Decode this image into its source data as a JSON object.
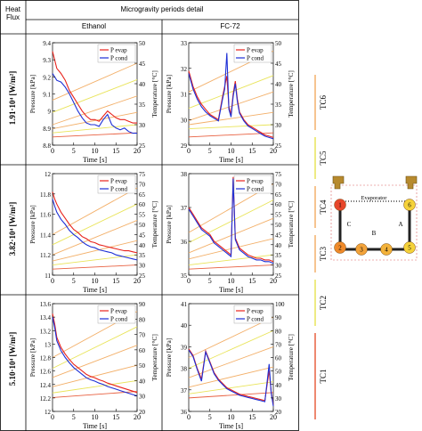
{
  "header": {
    "heat_flux_line1": "Heat",
    "heat_flux_line2": "Flux",
    "group_title": "Microgravity periods detail",
    "col_ethanol": "Ethanol",
    "col_fc72": "FC-72"
  },
  "rows": [
    {
      "label": "1.91·10⁴ [W/m²]"
    },
    {
      "label": "3.82·10⁴ [W/m²]"
    },
    {
      "label": "5.10·10⁴ [W/m²]"
    }
  ],
  "legend": {
    "p_evap": "P evap",
    "p_cond": "P cond"
  },
  "colors": {
    "p_evap": "#e8231c",
    "p_cond": "#1d2fd6",
    "tc_orange": "#f3b06a",
    "tc_yellow": "#e9e45a",
    "tc_red": "#e86040"
  },
  "tc_labels": [
    "TC6",
    "TC5",
    "TC4",
    "TC3",
    "TC2",
    "TC1"
  ],
  "schematic": {
    "evaporator": "Evaporator",
    "letters": [
      "C",
      "B",
      "A"
    ],
    "nodes": [
      "1",
      "2",
      "3",
      "4",
      "5",
      "6"
    ]
  },
  "chart_data": [
    {
      "type": "line",
      "panel": "ethanol-1",
      "xlabel": "Time [s]",
      "ylabel": "Pressure [kPa]",
      "y2label": "Temperature [°C]",
      "xlim": [
        0,
        20
      ],
      "ylim": [
        8.8,
        9.4
      ],
      "y2lim": [
        25,
        50
      ],
      "xticks": [
        0,
        5,
        10,
        15,
        20
      ],
      "yticks": [
        8.8,
        8.9,
        9,
        9.1,
        9.2,
        9.3,
        9.4
      ],
      "y2ticks": [
        25,
        30,
        35,
        40,
        45,
        50
      ],
      "series": [
        {
          "name": "P evap",
          "x": [
            0,
            0.5,
            1,
            2,
            3,
            4,
            5,
            6,
            7,
            8,
            9,
            10,
            11,
            12,
            13,
            14,
            15,
            16,
            17,
            18,
            19,
            20
          ],
          "y": [
            9.35,
            9.3,
            9.25,
            9.22,
            9.18,
            9.12,
            9.08,
            9.04,
            9.0,
            8.97,
            8.95,
            8.95,
            8.94,
            8.97,
            9.0,
            8.98,
            8.96,
            8.95,
            8.95,
            8.94,
            8.93,
            8.93
          ]
        },
        {
          "name": "P cond",
          "x": [
            0,
            0.5,
            1,
            2,
            3,
            4,
            5,
            6,
            7,
            8,
            9,
            10,
            11,
            12,
            13,
            14,
            15,
            16,
            17,
            18,
            19,
            20
          ],
          "y": [
            9.22,
            9.2,
            9.18,
            9.17,
            9.14,
            9.1,
            9.05,
            9.0,
            8.96,
            8.93,
            8.92,
            8.92,
            8.91,
            8.95,
            8.98,
            8.92,
            8.9,
            8.89,
            8.9,
            8.88,
            8.87,
            8.87
          ]
        }
      ],
      "temps": [
        {
          "tc": "TC6",
          "y0": 36,
          "y1": 45
        },
        {
          "tc": "TC5",
          "y0": 33,
          "y1": 41
        },
        {
          "tc": "TC4",
          "y0": 30,
          "y1": 37
        },
        {
          "tc": "TC3",
          "y0": 29,
          "y1": 33
        },
        {
          "tc": "TC2",
          "y0": 28,
          "y1": 30
        },
        {
          "tc": "TC1",
          "y0": 27,
          "y1": 28
        }
      ]
    },
    {
      "type": "line",
      "panel": "fc72-1",
      "xlabel": "Time [s]",
      "ylabel": "Pressure [kPa]",
      "y2label": "Temperature [°C]",
      "xlim": [
        0,
        20
      ],
      "ylim": [
        29,
        33
      ],
      "y2lim": [
        25,
        50
      ],
      "xticks": [
        0,
        5,
        10,
        15,
        20
      ],
      "yticks": [
        29,
        30,
        31,
        32,
        33
      ],
      "y2ticks": [
        25,
        30,
        35,
        40,
        45,
        50
      ],
      "series": [
        {
          "name": "P evap",
          "x": [
            0,
            1,
            2,
            3,
            4,
            5,
            6,
            7,
            8,
            8.5,
            9,
            9.5,
            10,
            10.5,
            11,
            11.5,
            12,
            13,
            14,
            15,
            16,
            17,
            18,
            19,
            20
          ],
          "y": [
            31.9,
            31.3,
            30.9,
            30.6,
            30.4,
            30.2,
            30.1,
            30.0,
            30.9,
            31.3,
            31.7,
            30.5,
            30.2,
            31.0,
            31.5,
            30.8,
            30.3,
            30.0,
            29.8,
            29.7,
            29.6,
            29.5,
            29.4,
            29.35,
            29.3
          ]
        },
        {
          "name": "P cond",
          "x": [
            0,
            1,
            2,
            3,
            4,
            5,
            6,
            7,
            8,
            8.5,
            9,
            9.5,
            10,
            10.5,
            11,
            11.5,
            12,
            13,
            14,
            15,
            16,
            17,
            18,
            19,
            20
          ],
          "y": [
            31.8,
            31.2,
            30.8,
            30.5,
            30.3,
            30.15,
            30.05,
            29.95,
            30.8,
            31.2,
            32.6,
            30.4,
            30.1,
            30.9,
            31.4,
            30.7,
            30.25,
            29.95,
            29.75,
            29.65,
            29.55,
            29.45,
            29.35,
            29.3,
            29.25
          ]
        }
      ],
      "temps": [
        {
          "tc": "TC6",
          "y0": 38,
          "y1": 48
        },
        {
          "tc": "TC5",
          "y0": 34,
          "y1": 42
        },
        {
          "tc": "TC4",
          "y0": 31,
          "y1": 38
        },
        {
          "tc": "TC3",
          "y0": 30,
          "y1": 33
        },
        {
          "tc": "TC2",
          "y0": 29,
          "y1": 30
        },
        {
          "tc": "TC1",
          "y0": 27,
          "y1": 28
        }
      ]
    },
    {
      "type": "line",
      "panel": "ethanol-2",
      "xlabel": "Time [s]",
      "ylabel": "Pressure [kPa]",
      "y2label": "Temperature [°C]",
      "xlim": [
        0,
        20
      ],
      "ylim": [
        11,
        12
      ],
      "y2lim": [
        25,
        75
      ],
      "xticks": [
        0,
        5,
        10,
        15,
        20
      ],
      "yticks": [
        11,
        11.2,
        11.4,
        11.6,
        11.8,
        12
      ],
      "y2ticks": [
        25,
        30,
        35,
        40,
        45,
        50,
        55,
        60,
        65,
        70,
        75
      ],
      "series": [
        {
          "name": "P evap",
          "x": [
            0,
            0.5,
            1,
            2,
            3,
            4,
            5,
            6,
            7,
            8,
            9,
            10,
            11,
            12,
            13,
            14,
            15,
            16,
            17,
            18,
            19,
            20
          ],
          "y": [
            11.82,
            11.75,
            11.7,
            11.62,
            11.56,
            11.5,
            11.45,
            11.42,
            11.38,
            11.36,
            11.33,
            11.32,
            11.3,
            11.29,
            11.28,
            11.27,
            11.26,
            11.25,
            11.24,
            11.24,
            11.23,
            11.22
          ]
        },
        {
          "name": "P cond",
          "x": [
            0,
            0.5,
            1,
            2,
            3,
            4,
            5,
            6,
            7,
            8,
            9,
            10,
            11,
            12,
            13,
            14,
            15,
            16,
            17,
            18,
            19,
            20
          ],
          "y": [
            11.75,
            11.68,
            11.62,
            11.55,
            11.5,
            11.44,
            11.4,
            11.37,
            11.33,
            11.3,
            11.28,
            11.27,
            11.25,
            11.24,
            11.23,
            11.22,
            11.2,
            11.19,
            11.18,
            11.17,
            11.16,
            11.15
          ]
        }
      ],
      "temps": [
        {
          "tc": "TC6",
          "y0": 45,
          "y1": 68
        },
        {
          "tc": "TC5",
          "y0": 40,
          "y1": 60
        },
        {
          "tc": "TC4",
          "y0": 35,
          "y1": 52
        },
        {
          "tc": "TC3",
          "y0": 32,
          "y1": 42
        },
        {
          "tc": "TC2",
          "y0": 30,
          "y1": 35
        },
        {
          "tc": "TC1",
          "y0": 28,
          "y1": 30
        }
      ]
    },
    {
      "type": "line",
      "panel": "fc72-2",
      "xlabel": "Time [s]",
      "ylabel": "Pressure [kPa]",
      "y2label": "Temperature [°C]",
      "xlim": [
        0,
        20
      ],
      "ylim": [
        35,
        38
      ],
      "y2lim": [
        25,
        75
      ],
      "xticks": [
        0,
        5,
        10,
        15,
        20
      ],
      "yticks": [
        35,
        36,
        37,
        38
      ],
      "y2ticks": [
        25,
        30,
        35,
        40,
        45,
        50,
        55,
        60,
        65,
        70,
        75
      ],
      "series": [
        {
          "name": "P evap",
          "x": [
            0,
            1,
            2,
            3,
            4,
            5,
            6,
            7,
            8,
            9,
            10,
            10.5,
            11,
            12,
            13,
            14,
            15,
            16,
            17,
            18,
            19,
            20
          ],
          "y": [
            37.0,
            36.8,
            36.6,
            36.4,
            36.3,
            36.2,
            36.0,
            35.9,
            35.8,
            35.7,
            35.6,
            37.9,
            36.1,
            35.8,
            35.7,
            35.6,
            35.55,
            35.5,
            35.5,
            35.45,
            35.45,
            35.4
          ]
        },
        {
          "name": "P cond",
          "x": [
            0,
            1,
            2,
            3,
            4,
            5,
            6,
            7,
            8,
            9,
            10,
            10.5,
            11,
            12,
            13,
            14,
            15,
            16,
            17,
            18,
            19,
            20
          ],
          "y": [
            36.95,
            36.75,
            36.55,
            36.35,
            36.25,
            36.15,
            35.95,
            35.85,
            35.75,
            35.65,
            35.55,
            37.85,
            36.05,
            35.75,
            35.65,
            35.55,
            35.5,
            35.45,
            35.45,
            35.4,
            35.4,
            35.35
          ]
        }
      ],
      "temps": [
        {
          "tc": "TC6",
          "y0": 46,
          "y1": 70
        },
        {
          "tc": "TC5",
          "y0": 41,
          "y1": 62
        },
        {
          "tc": "TC4",
          "y0": 36,
          "y1": 53
        },
        {
          "tc": "TC3",
          "y0": 33,
          "y1": 43
        },
        {
          "tc": "TC2",
          "y0": 30,
          "y1": 35
        },
        {
          "tc": "TC1",
          "y0": 28,
          "y1": 30
        }
      ]
    },
    {
      "type": "line",
      "panel": "ethanol-3",
      "xlabel": "Time [s]",
      "ylabel": "Pressure [kPa]",
      "y2label": "Temperature [°C]",
      "xlim": [
        0,
        20
      ],
      "ylim": [
        12,
        13.6
      ],
      "y2lim": [
        20,
        90
      ],
      "xticks": [
        0,
        5,
        10,
        15,
        20
      ],
      "yticks": [
        12,
        12.2,
        12.4,
        12.6,
        12.8,
        13,
        13.2,
        13.4,
        13.6
      ],
      "y2ticks": [
        20,
        30,
        40,
        50,
        60,
        70,
        80,
        90
      ],
      "series": [
        {
          "name": "P evap",
          "x": [
            0,
            0.5,
            1,
            2,
            3,
            4,
            5,
            6,
            7,
            8,
            9,
            10,
            11,
            12,
            13,
            14,
            15,
            16,
            17,
            18,
            19,
            20
          ],
          "y": [
            13.45,
            13.3,
            13.1,
            12.95,
            12.85,
            12.77,
            12.7,
            12.65,
            12.6,
            12.55,
            12.52,
            12.5,
            12.47,
            12.45,
            12.42,
            12.4,
            12.38,
            12.36,
            12.34,
            12.32,
            12.3,
            12.28
          ]
        },
        {
          "name": "P cond",
          "x": [
            0,
            0.5,
            1,
            2,
            3,
            4,
            5,
            6,
            7,
            8,
            9,
            10,
            11,
            12,
            13,
            14,
            15,
            16,
            17,
            18,
            19,
            20
          ],
          "y": [
            13.4,
            13.25,
            13.05,
            12.9,
            12.8,
            12.72,
            12.65,
            12.6,
            12.55,
            12.5,
            12.47,
            12.45,
            12.42,
            12.4,
            12.37,
            12.35,
            12.33,
            12.31,
            12.29,
            12.27,
            12.25,
            12.23
          ]
        }
      ],
      "temps": [
        {
          "tc": "TC6",
          "y0": 55,
          "y1": 85
        },
        {
          "tc": "TC5",
          "y0": 48,
          "y1": 75
        },
        {
          "tc": "TC4",
          "y0": 42,
          "y1": 63
        },
        {
          "tc": "TC3",
          "y0": 36,
          "y1": 50
        },
        {
          "tc": "TC2",
          "y0": 32,
          "y1": 40
        },
        {
          "tc": "TC1",
          "y0": 29,
          "y1": 33
        }
      ]
    },
    {
      "type": "line",
      "panel": "fc72-3",
      "xlabel": "Time [s]",
      "ylabel": "Pressure [kPa]",
      "y2label": "Temperature [°C]",
      "xlim": [
        0,
        20
      ],
      "ylim": [
        36,
        41
      ],
      "y2lim": [
        20,
        100
      ],
      "xticks": [
        0,
        5,
        10,
        15,
        20
      ],
      "yticks": [
        36,
        37,
        38,
        39,
        40,
        41
      ],
      "y2ticks": [
        20,
        30,
        40,
        50,
        60,
        70,
        80,
        90,
        100
      ],
      "series": [
        {
          "name": "P evap",
          "x": [
            0,
            1,
            2,
            3,
            4,
            5,
            6,
            7,
            8,
            9,
            10,
            11,
            12,
            13,
            14,
            15,
            16,
            17,
            18,
            19,
            19.5,
            20
          ],
          "y": [
            38.9,
            38.6,
            38.0,
            37.5,
            38.8,
            38.3,
            37.8,
            37.5,
            37.3,
            37.1,
            37.0,
            36.9,
            36.8,
            36.75,
            36.7,
            36.65,
            36.6,
            36.55,
            36.5,
            37.9,
            36.9,
            36.3
          ]
        },
        {
          "name": "P cond",
          "x": [
            0,
            1,
            2,
            3,
            4,
            5,
            6,
            7,
            8,
            9,
            10,
            11,
            12,
            13,
            14,
            15,
            16,
            17,
            18,
            19,
            19.5,
            20
          ],
          "y": [
            38.85,
            38.55,
            37.95,
            37.4,
            38.75,
            38.25,
            37.75,
            37.45,
            37.25,
            37.05,
            36.95,
            36.85,
            36.75,
            36.7,
            36.65,
            36.6,
            36.55,
            36.5,
            36.45,
            38.2,
            36.85,
            36.25
          ]
        }
      ],
      "temps": [
        {
          "tc": "TC6",
          "y0": 60,
          "y1": 90
        },
        {
          "tc": "TC5",
          "y0": 52,
          "y1": 80
        },
        {
          "tc": "TC4",
          "y0": 45,
          "y1": 68
        },
        {
          "tc": "TC3",
          "y0": 38,
          "y1": 53
        },
        {
          "tc": "TC2",
          "y0": 33,
          "y1": 42
        },
        {
          "tc": "TC1",
          "y0": 30,
          "y1": 34
        }
      ]
    }
  ]
}
